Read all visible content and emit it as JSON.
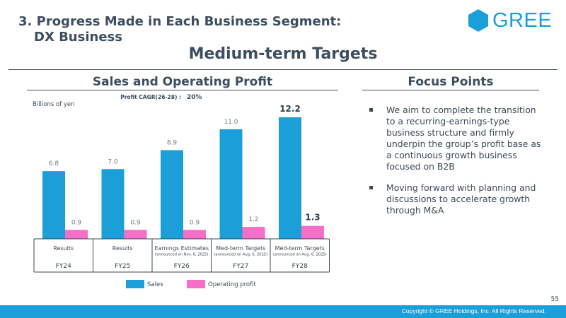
{
  "header": {
    "section_title_line1": "3. Progress Made in Each Business Segment:",
    "section_title_line2": "DX Business",
    "logo_text": "GREE",
    "main_heading": "Medium-term Targets"
  },
  "left_panel": {
    "title": "Sales and Operating Profit"
  },
  "right_panel": {
    "title": "Focus Points",
    "points": [
      "We aim to complete the transition to a recurring-earnings-type business structure and firmly underpin the group’s profit base as a continuous growth business focused on B2B",
      "Moving forward with planning and discussions to accelerate growth through M&A"
    ]
  },
  "chart_data": {
    "type": "bar",
    "unit_label": "Billions of yen",
    "cagr_label": "Profit CAGR(26-28) :",
    "cagr_value": "20%",
    "categories": [
      "FY24",
      "FY25",
      "FY26",
      "FY27",
      "FY28"
    ],
    "category_types": [
      "Results",
      "Results",
      "Earnings Estimates",
      "Med-term Targets",
      "Med-term Targets"
    ],
    "category_notes": [
      "",
      "",
      "(announced on Nov. 6, 2025)",
      "(announced on Aug. 6, 2025)",
      "(announced on Aug. 6, 2025)"
    ],
    "series": [
      {
        "name": "Sales",
        "color": "#1a9fd9",
        "values": [
          6.8,
          7.0,
          8.9,
          11.0,
          12.2
        ],
        "labels": [
          "6.8",
          "7.0",
          "8.9",
          "11.0",
          "12.2"
        ]
      },
      {
        "name": "Operating profit",
        "color": "#f56fc6",
        "values": [
          0.9,
          0.9,
          0.9,
          1.2,
          1.3
        ],
        "labels": [
          "0.9",
          "0.9",
          "0.9",
          "1.2",
          "1.3"
        ]
      }
    ],
    "highlight_index": 4,
    "ylim": [
      0,
      12.2
    ]
  },
  "footer": {
    "copyright": "Copyright © GREE Holdings, Inc. All Rights Reserved.",
    "page_number": "55"
  }
}
